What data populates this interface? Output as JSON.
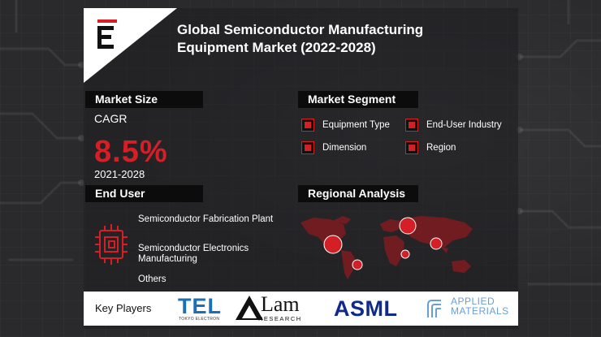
{
  "title": {
    "line1": "Global Semiconductor Manufacturing",
    "line2": "Equipment Market (2022-2028)"
  },
  "logo": {
    "letter": "E",
    "icon": "brand-e-logo"
  },
  "market_size": {
    "header": "Market Size",
    "cagr_label": "CAGR",
    "cagr_value": "8.5%",
    "period": "2021-2028"
  },
  "market_segment": {
    "header": "Market Segment",
    "items": [
      "Equipment Type",
      "End-User Industry",
      "Dimension",
      "Region"
    ]
  },
  "end_user": {
    "header": "End User",
    "items": [
      "Semiconductor Fabrication Plant",
      "Semiconductor Electronics Manufacturing",
      "Others"
    ],
    "icon": "chip-icon"
  },
  "regional_analysis": {
    "header": "Regional Analysis",
    "icon": "world-map-icon"
  },
  "key_players": {
    "label": "Key Players",
    "logos": {
      "tel": "TEL",
      "tel_sub": "TOKYO ELECTRON",
      "lam": "Lam",
      "lam_sub": "RESEARCH",
      "asml": "ASML",
      "applied": "APPLIED MATERIALS"
    }
  },
  "colors": {
    "accent": "#d41f26",
    "background": "#2b2b2d",
    "header_bar": "#0c0c0c"
  }
}
